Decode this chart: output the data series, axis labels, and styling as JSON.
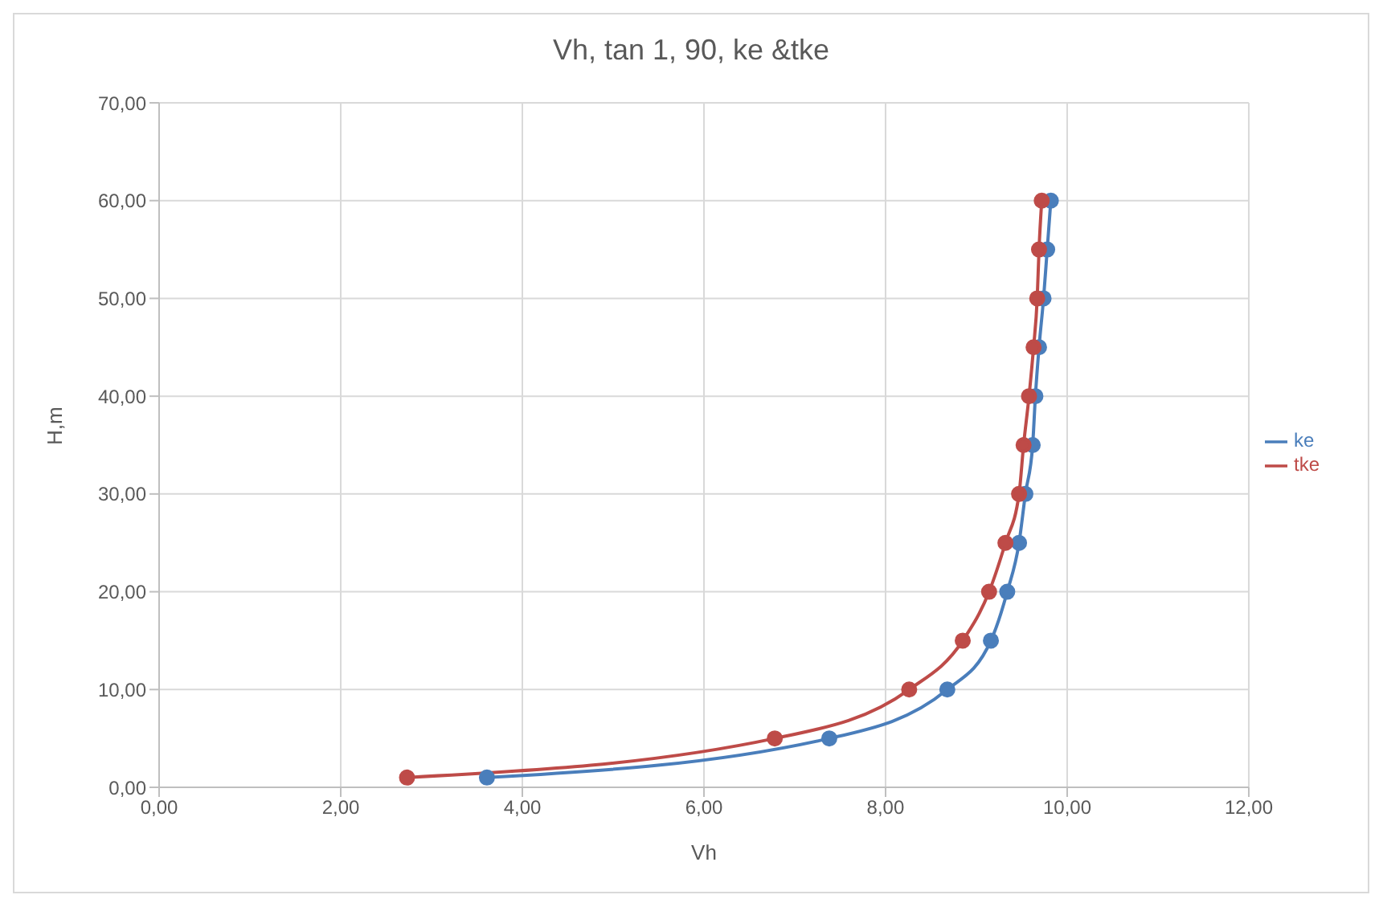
{
  "chart_data": {
    "type": "line",
    "title": "Vh, tan 1, 90, ke &tke",
    "xlabel": "Vh",
    "ylabel": "H,m",
    "xlim": [
      0,
      12
    ],
    "ylim": [
      0,
      70
    ],
    "xticks": [
      {
        "value": 0,
        "label": "0,00"
      },
      {
        "value": 2,
        "label": "2,00"
      },
      {
        "value": 4,
        "label": "4,00"
      },
      {
        "value": 6,
        "label": "6,00"
      },
      {
        "value": 8,
        "label": "8,00"
      },
      {
        "value": 10,
        "label": "10,00"
      },
      {
        "value": 12,
        "label": "12,00"
      }
    ],
    "yticks": [
      {
        "value": 0,
        "label": "0,00"
      },
      {
        "value": 10,
        "label": "10,00"
      },
      {
        "value": 20,
        "label": "20,00"
      },
      {
        "value": 30,
        "label": "30,00"
      },
      {
        "value": 40,
        "label": "40,00"
      },
      {
        "value": 50,
        "label": "50,00"
      },
      {
        "value": 60,
        "label": "60,00"
      },
      {
        "value": 70,
        "label": "70,00"
      }
    ],
    "grid": true,
    "legend": "right",
    "marker": "circle",
    "line_style": "solid",
    "series": [
      {
        "name": "ke",
        "color": "#4a7ebb",
        "x": [
          3.61,
          7.38,
          8.68,
          9.16,
          9.34,
          9.47,
          9.54,
          9.62,
          9.65,
          9.69,
          9.74,
          9.78,
          9.82
        ],
        "values": [
          1,
          5,
          10,
          15,
          20,
          25,
          30,
          35,
          40,
          45,
          50,
          55,
          60
        ]
      },
      {
        "name": "tke",
        "color": "#be4b48",
        "x": [
          2.73,
          6.78,
          8.26,
          8.85,
          9.14,
          9.32,
          9.47,
          9.52,
          9.58,
          9.63,
          9.67,
          9.69,
          9.72
        ],
        "values": [
          1,
          5,
          10,
          15,
          20,
          25,
          30,
          35,
          40,
          45,
          50,
          55,
          60
        ]
      }
    ]
  }
}
